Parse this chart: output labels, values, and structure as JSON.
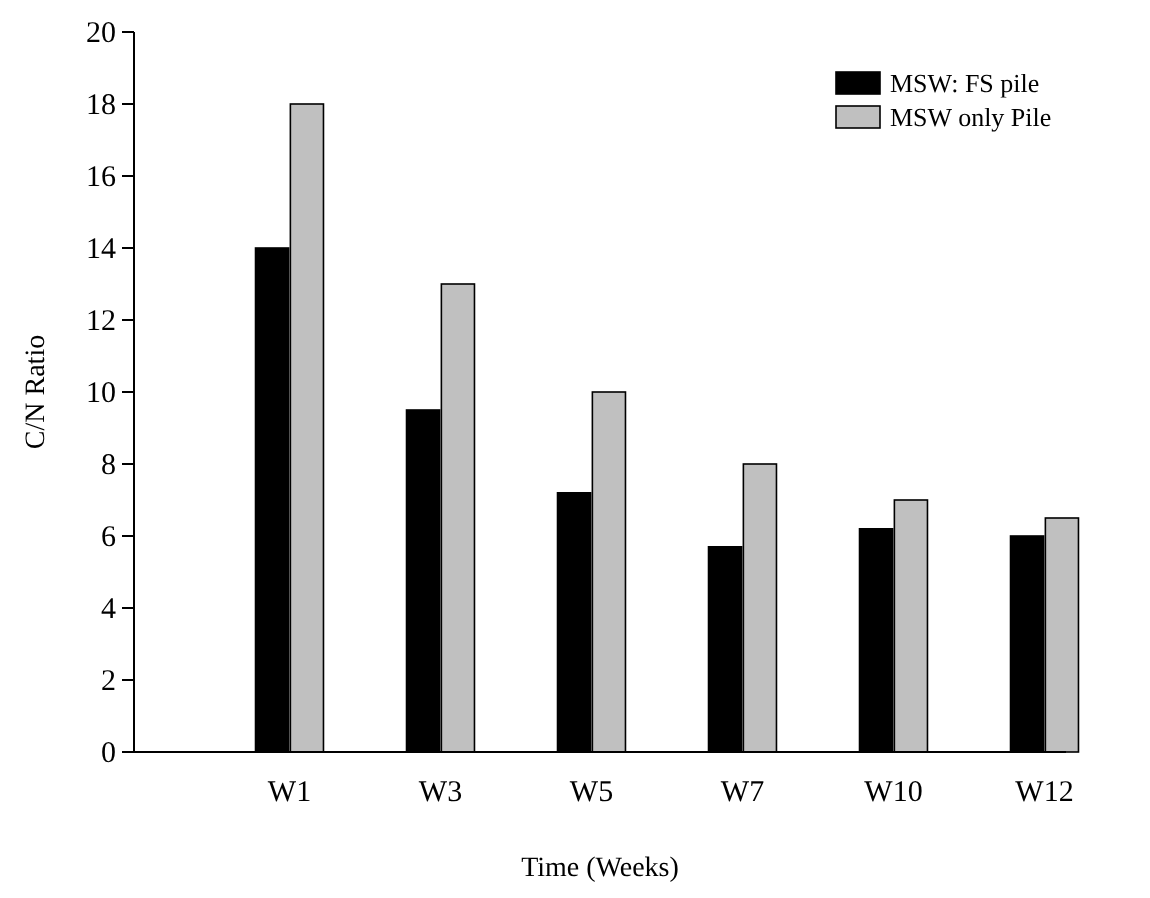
{
  "chart_data": {
    "type": "bar",
    "xlabel": "Time (Weeks)",
    "ylabel": "C/N Ratio",
    "categories": [
      "W1",
      "W3",
      "W5",
      "W7",
      "W10",
      "W12"
    ],
    "series": [
      {
        "name": "MSW: FS pile",
        "color": "#000000",
        "values": [
          14,
          9.5,
          7.2,
          5.7,
          6.2,
          6.0
        ]
      },
      {
        "name": "MSW only Pile",
        "color": "#c0c0c0",
        "values": [
          18,
          13,
          10,
          8,
          7,
          6.5
        ]
      }
    ],
    "ylim": [
      0,
      20
    ],
    "yticks": [
      0,
      2,
      4,
      6,
      8,
      10,
      12,
      14,
      16,
      18,
      20
    ],
    "grid": false,
    "legend": "top right"
  }
}
